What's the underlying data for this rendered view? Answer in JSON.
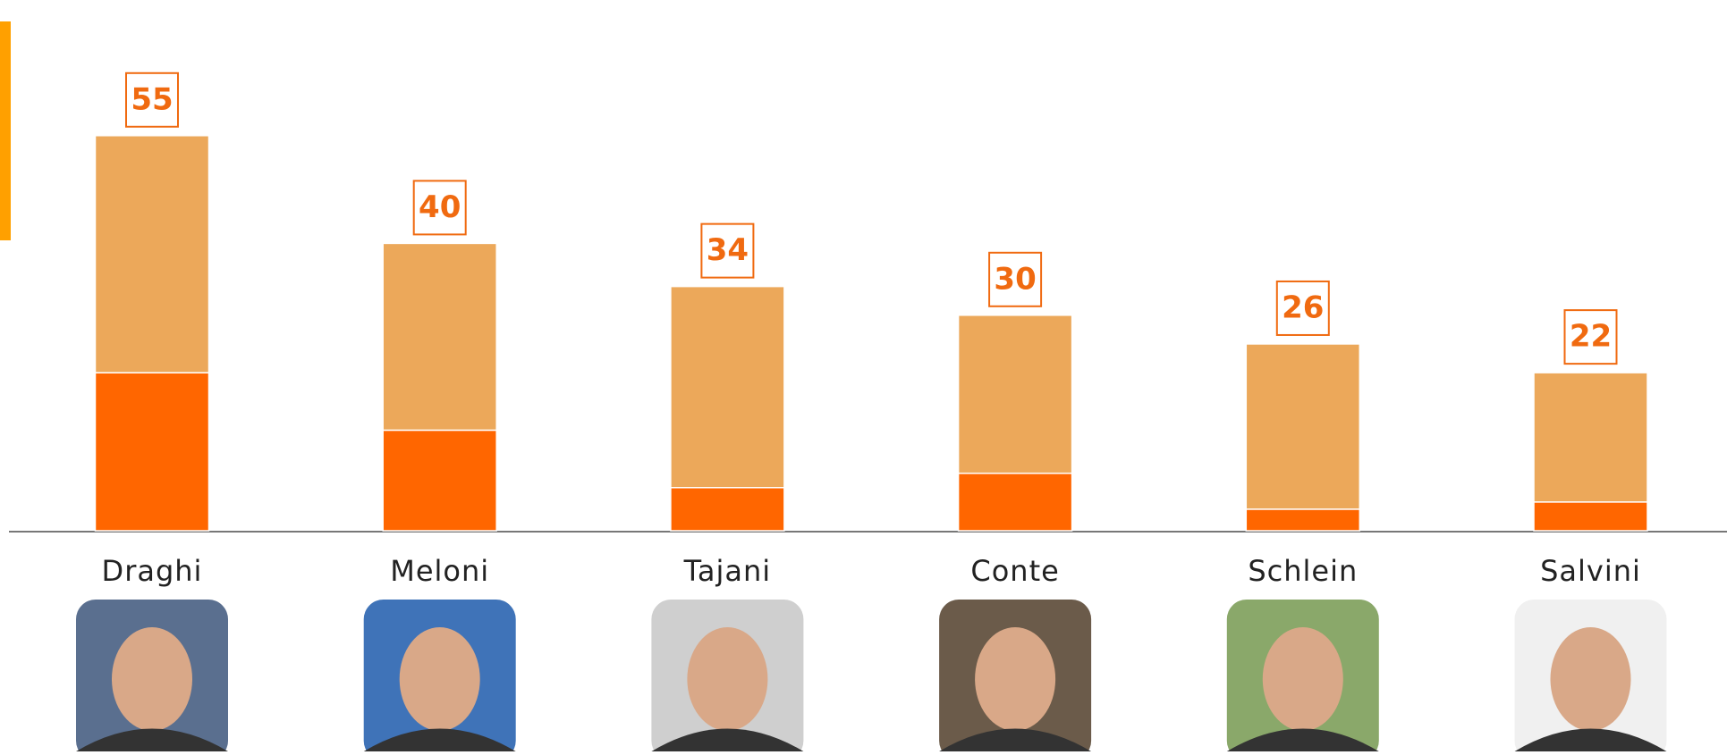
{
  "chart_data": {
    "type": "stacked-bar",
    "categories": [
      "Draghi",
      "Meloni",
      "Tajani",
      "Conte",
      "Schlein",
      "Salvini"
    ],
    "series": [
      {
        "color": "#ff6600",
        "values": [
          22,
          14,
          6,
          8,
          3,
          4
        ]
      },
      {
        "color": "#eca85a",
        "values": [
          33,
          26,
          28,
          22,
          23,
          18
        ]
      }
    ],
    "totals": [
      55,
      40,
      34,
      30,
      26,
      22
    ],
    "label_color": "#f06a10"
  }
}
